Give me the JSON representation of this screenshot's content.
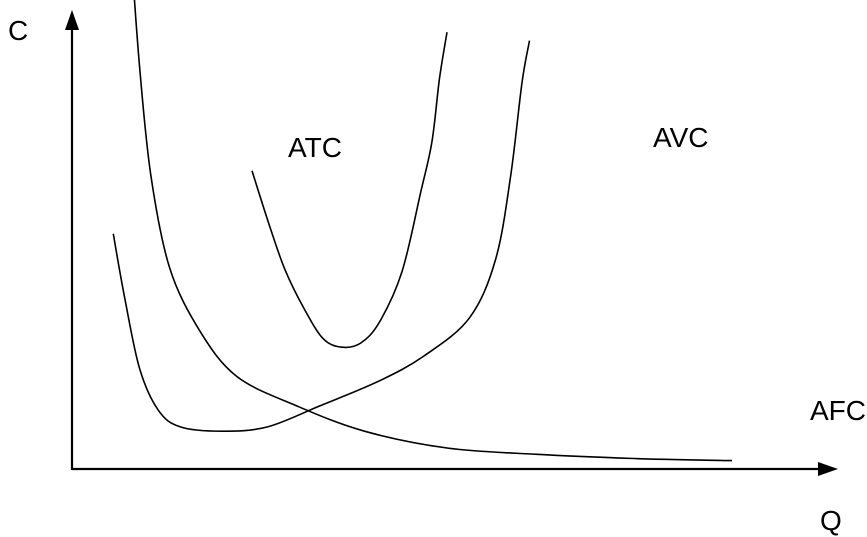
{
  "chart_data": {
    "type": "line",
    "xlabel": "Q",
    "ylabel": "C",
    "grid": false,
    "series": [
      {
        "name": "ATC",
        "points": [
          [
            0.24,
            -0.71
          ],
          [
            0.265,
            -0.57
          ],
          [
            0.285,
            -0.47
          ],
          [
            0.31,
            -0.38
          ],
          [
            0.335,
            -0.31
          ],
          [
            0.36,
            -0.29
          ],
          [
            0.385,
            -0.3
          ],
          [
            0.41,
            -0.35
          ],
          [
            0.44,
            -0.47
          ],
          [
            0.465,
            -0.66
          ],
          [
            0.48,
            -0.78
          ],
          [
            0.49,
            -0.93
          ],
          [
            0.5,
            -1.04
          ]
        ]
      },
      {
        "name": "AVC",
        "points": [
          [
            0.055,
            -0.56
          ],
          [
            0.07,
            -0.41
          ],
          [
            0.09,
            -0.24
          ],
          [
            0.115,
            -0.14
          ],
          [
            0.145,
            -0.1
          ],
          [
            0.2,
            -0.09
          ],
          [
            0.26,
            -0.1
          ],
          [
            0.33,
            -0.15
          ],
          [
            0.41,
            -0.21
          ],
          [
            0.47,
            -0.27
          ],
          [
            0.53,
            -0.36
          ],
          [
            0.565,
            -0.5
          ],
          [
            0.585,
            -0.7
          ],
          [
            0.6,
            -0.92
          ],
          [
            0.61,
            -1.02
          ]
        ]
      },
      {
        "name": "AFC",
        "points": [
          [
            0.08,
            -1.2
          ],
          [
            0.09,
            -0.96
          ],
          [
            0.105,
            -0.7
          ],
          [
            0.13,
            -0.48
          ],
          [
            0.17,
            -0.33
          ],
          [
            0.22,
            -0.22
          ],
          [
            0.3,
            -0.15
          ],
          [
            0.39,
            -0.09
          ],
          [
            0.5,
            -0.05
          ],
          [
            0.62,
            -0.035
          ],
          [
            0.75,
            -0.025
          ],
          [
            0.88,
            -0.02
          ]
        ]
      }
    ]
  }
}
